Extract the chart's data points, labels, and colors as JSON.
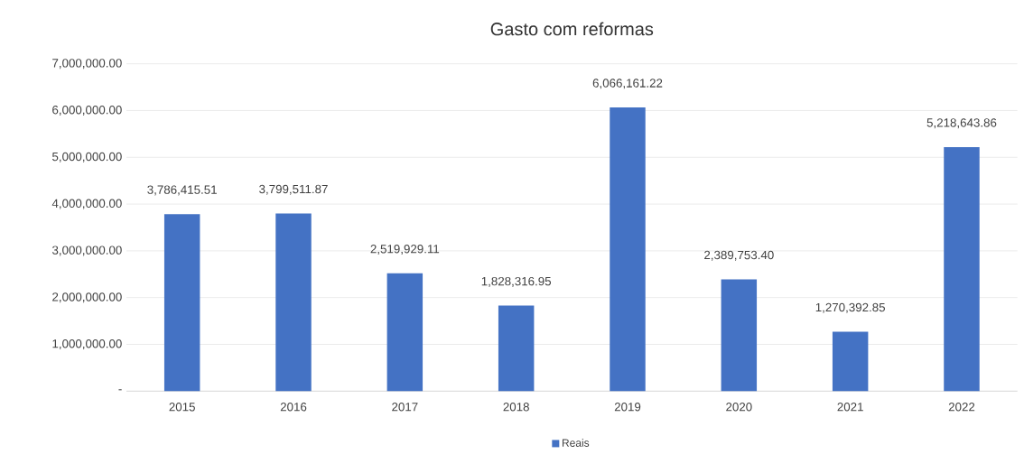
{
  "chart_data": {
    "type": "bar",
    "title": "Gasto com reformas",
    "categories": [
      "2015",
      "2016",
      "2017",
      "2018",
      "2019",
      "2020",
      "2021",
      "2022"
    ],
    "series": [
      {
        "name": "Reais",
        "color": "#4472c4",
        "values": [
          3786415.51,
          3799511.87,
          2519929.11,
          1828316.95,
          6066161.22,
          2389753.4,
          1270392.85,
          5218643.86
        ],
        "value_labels": [
          "3,786,415.51",
          "3,799,511.87",
          "2,519,929.11",
          "1,828,316.95",
          "6,066,161.22",
          "2,389,753.40",
          "1,270,392.85",
          "5,218,643.86"
        ]
      }
    ],
    "ylim": [
      0,
      7000000
    ],
    "yticks": [
      {
        "value": 0,
        "label": "-"
      },
      {
        "value": 1000000,
        "label": "1,000,000.00"
      },
      {
        "value": 2000000,
        "label": "2,000,000.00"
      },
      {
        "value": 3000000,
        "label": "3,000,000.00"
      },
      {
        "value": 4000000,
        "label": "4,000,000.00"
      },
      {
        "value": 5000000,
        "label": "5,000,000.00"
      },
      {
        "value": 6000000,
        "label": "6,000,000.00"
      },
      {
        "value": 7000000,
        "label": "7,000,000.00"
      }
    ],
    "grid": "y",
    "legend": "bottom"
  }
}
